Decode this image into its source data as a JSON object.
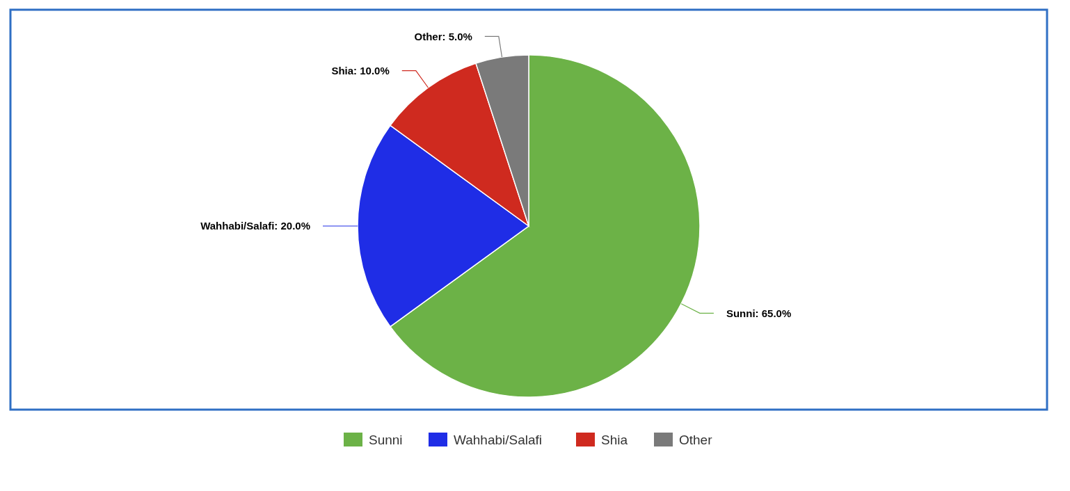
{
  "chart_data": {
    "type": "pie",
    "categories": [
      "Sunni",
      "Wahhabi/Salafi",
      "Shia",
      "Other"
    ],
    "values": [
      65,
      20,
      10,
      5
    ],
    "colors": [
      "#6cb247",
      "#1f2de6",
      "#cf2a1f",
      "#7a7a7a"
    ],
    "value_labels": [
      "Sunni: 65.0%",
      "Wahhabi/Salafi: 20.0%",
      "Shia: 10.0%",
      "Other: 5.0%"
    ],
    "legend": "bottom"
  }
}
